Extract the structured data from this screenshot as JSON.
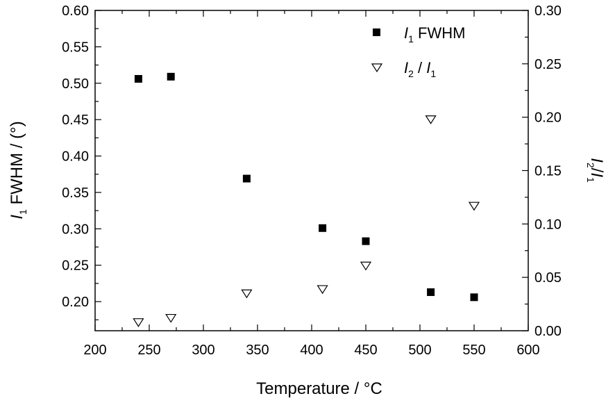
{
  "chart_data": {
    "type": "scatter",
    "x_axis": {
      "label_main": "Temperature / ",
      "label_unit": "°C",
      "range": [
        200,
        600
      ],
      "ticks": [
        200,
        250,
        300,
        350,
        400,
        450,
        500,
        550,
        600
      ],
      "tick_labels": [
        "200",
        "250",
        "300",
        "350",
        "400",
        "450",
        "500",
        "550",
        "600"
      ]
    },
    "y_left": {
      "label_I": "I",
      "label_sub": "1",
      "label_rest": " FWHM / (°)",
      "range": [
        0.16,
        0.6
      ],
      "ticks": [
        0.2,
        0.25,
        0.3,
        0.35,
        0.4,
        0.45,
        0.5,
        0.55,
        0.6
      ],
      "tick_labels": [
        "0.20",
        "0.25",
        "0.30",
        "0.35",
        "0.40",
        "0.45",
        "0.50",
        "0.55",
        "0.60"
      ]
    },
    "y_right": {
      "label_I2": "I",
      "label_sub2": "2",
      "label_slash": "/",
      "label_I1": "I",
      "label_sub1": "1",
      "range": [
        0.0,
        0.3
      ],
      "ticks": [
        0.0,
        0.05,
        0.1,
        0.15,
        0.2,
        0.25,
        0.3
      ],
      "tick_labels": [
        "0.00",
        "0.05",
        "0.10",
        "0.15",
        "0.20",
        "0.25",
        "0.30"
      ]
    },
    "series": [
      {
        "name": "I1 FWHM",
        "axis": "left",
        "marker": "filled-square",
        "x": [
          240,
          270,
          340,
          410,
          450,
          510,
          550
        ],
        "y": [
          0.506,
          0.509,
          0.369,
          0.301,
          0.283,
          0.213,
          0.206
        ]
      },
      {
        "name": "I2 / I1",
        "axis": "right",
        "marker": "open-triangle-down",
        "x": [
          240,
          270,
          340,
          410,
          450,
          510,
          550
        ],
        "y": [
          0.008,
          0.012,
          0.035,
          0.039,
          0.061,
          0.198,
          0.117
        ]
      }
    ],
    "legend": {
      "position": "top-right",
      "entry1_I": "I",
      "entry1_sub": "1",
      "entry1_rest": " FWHM",
      "entry2_I2": "I",
      "entry2_sub2": "2",
      "entry2_slash": " / ",
      "entry2_I1": "I",
      "entry2_sub1": "1"
    },
    "grid": false,
    "colors": {
      "marker": "#000000",
      "axis": "#000000"
    }
  }
}
